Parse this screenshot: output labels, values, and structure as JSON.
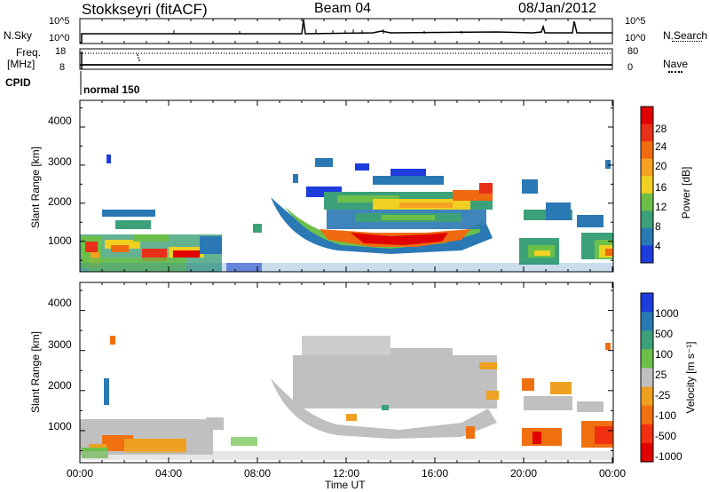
{
  "header": {
    "station": "Stokkseyri (fitACF)",
    "beam": "Beam 04",
    "date": "08/Jan/2012"
  },
  "top_panel": {
    "left_label": "N.Sky",
    "right_label": "N.Search",
    "scale_top": "10^5",
    "scale_bottom": "10^0"
  },
  "freq_panel": {
    "left_label": "Freq.",
    "left_unit": "[MHz]",
    "left_top": "18",
    "left_bottom": "8",
    "right_label": "Nave",
    "right_top": "80",
    "right_bottom": "0"
  },
  "cpid": {
    "label": "CPID",
    "mode": "normal 150"
  },
  "x_axis": {
    "ticks": [
      "00:00",
      "04:00",
      "08:00",
      "12:00",
      "16:00",
      "20:00",
      "00:00"
    ],
    "label": "Time UT"
  },
  "power_panel": {
    "ylabel": "Slant Range [km]",
    "yticks": [
      "1000",
      "2000",
      "3000",
      "4000"
    ],
    "colorbar_label": "Power [dB]",
    "colorbar_ticks": [
      "4",
      "8",
      "12",
      "16",
      "20",
      "24",
      "28"
    ],
    "colors": [
      "#1e3cdc",
      "#2a78b4",
      "#3ca078",
      "#6cc04a",
      "#f0d020",
      "#f5a020",
      "#f06a10",
      "#e83018",
      "#e00000"
    ]
  },
  "velocity_panel": {
    "ylabel": "Slant Range [km]",
    "yticks": [
      "1000",
      "2000",
      "3000",
      "4000"
    ],
    "colorbar_label": "Velocity [m s⁻¹]",
    "colorbar_ticks": [
      "1000",
      "500",
      "100",
      "25",
      "-25",
      "-100",
      "-500",
      "-1000"
    ],
    "colors": [
      "#1e3cdc",
      "#2a78b4",
      "#3ca078",
      "#6cc04a",
      "#c0c0c0",
      "#f0a020",
      "#f07010",
      "#f03010",
      "#e00000"
    ]
  }
}
